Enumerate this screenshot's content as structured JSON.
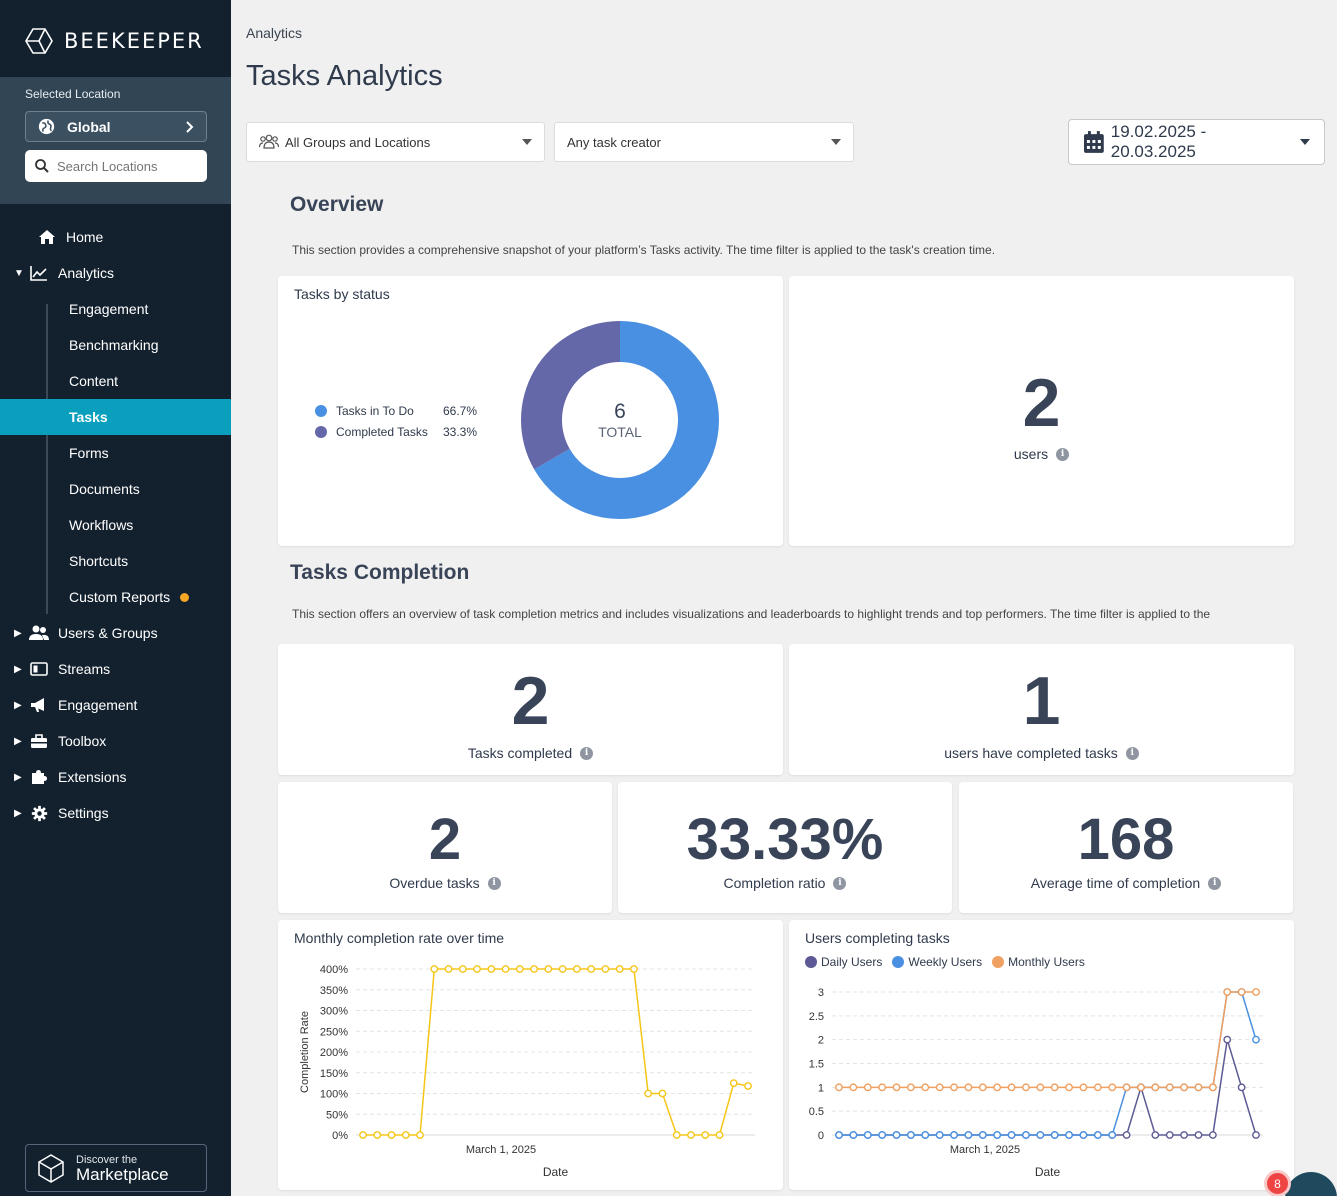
{
  "sidebar": {
    "brand": "BEEKEEPER",
    "location": {
      "label": "Selected Location",
      "value": "Global",
      "search_placeholder": "Search Locations"
    },
    "nav": {
      "home": "Home",
      "analytics": "Analytics",
      "analytics_sub": [
        "Engagement",
        "Benchmarking",
        "Content",
        "Tasks",
        "Forms",
        "Documents",
        "Workflows",
        "Shortcuts",
        "Custom Reports"
      ],
      "users_groups": "Users & Groups",
      "streams": "Streams",
      "engagement": "Engagement",
      "toolbox": "Toolbox",
      "extensions": "Extensions",
      "settings": "Settings"
    },
    "active_item": "Tasks",
    "marketplace": {
      "line1": "Discover the",
      "line2": "Marketplace"
    }
  },
  "header": {
    "breadcrumb": "Analytics",
    "title": "Tasks Analytics",
    "filter_groups": "All Groups and Locations",
    "filter_creator": "Any task creator",
    "date_range": "19.02.2025 - 20.03.2025"
  },
  "overview": {
    "title": "Overview",
    "description": "This section provides a comprehensive snapshot of your platform’s Tasks activity. The time filter is applied to the task's creation time.",
    "status_card": {
      "title": "Tasks by status",
      "total": "6",
      "total_label": "TOTAL",
      "legend": [
        {
          "label": "Tasks in To Do",
          "pct": "66.7%",
          "color": "#4a90e2"
        },
        {
          "label": "Completed Tasks",
          "pct": "33.3%",
          "color": "#6468a8"
        }
      ]
    },
    "users": {
      "value": "2",
      "label": "users"
    }
  },
  "completion": {
    "title": "Tasks Completion",
    "description": "This section offers an overview of task completion metrics and includes visualizations and leaderboards to highlight trends and top performers. The time filter is applied to the",
    "tasks_completed": {
      "value": "2",
      "label": "Tasks completed"
    },
    "users_completed": {
      "value": "1",
      "label": "users have completed tasks"
    },
    "overdue": {
      "value": "2",
      "label": "Overdue tasks"
    },
    "ratio": {
      "value": "33.33%",
      "label": "Completion ratio"
    },
    "avg_time": {
      "value": "168",
      "label": "Average time of completion"
    }
  },
  "chart_data": [
    {
      "type": "pie",
      "title": "Tasks by status",
      "categories": [
        "Tasks in To Do",
        "Completed Tasks"
      ],
      "values": [
        66.7,
        33.3
      ],
      "colors": [
        "#4a90e2",
        "#6468a8"
      ]
    },
    {
      "type": "line",
      "title": "Monthly completion rate over time",
      "xlabel": "Date",
      "ylabel": "Completion Rate",
      "x_tick_label": "March 1, 2025",
      "y_ticks": [
        "0%",
        "50%",
        "100%",
        "150%",
        "200%",
        "250%",
        "300%",
        "350%",
        "400%"
      ],
      "ylim": [
        0,
        400
      ],
      "series": [
        {
          "color": "#f5c518",
          "values": [
            0,
            0,
            0,
            0,
            0,
            400,
            400,
            400,
            400,
            400,
            400,
            400,
            400,
            400,
            400,
            400,
            400,
            400,
            400,
            400,
            100,
            100,
            0,
            0,
            0,
            0,
            125,
            118
          ]
        }
      ]
    },
    {
      "type": "line",
      "title": "Users completing tasks",
      "xlabel": "Date",
      "x_tick_label": "March 1, 2025",
      "y_ticks": [
        "0",
        "0.5",
        "1",
        "1.5",
        "2",
        "2.5",
        "3"
      ],
      "ylim": [
        0,
        3
      ],
      "series": [
        {
          "name": "Daily Users",
          "color": "#5c5a94",
          "values": [
            0,
            0,
            0,
            0,
            0,
            0,
            0,
            0,
            0,
            0,
            0,
            0,
            0,
            0,
            0,
            0,
            0,
            0,
            0,
            0,
            0,
            1,
            0,
            0,
            0,
            0,
            0,
            2,
            1,
            0
          ]
        },
        {
          "name": "Weekly Users",
          "color": "#4a90e2",
          "values": [
            0,
            0,
            0,
            0,
            0,
            0,
            0,
            0,
            0,
            0,
            0,
            0,
            0,
            0,
            0,
            0,
            0,
            0,
            0,
            0,
            1,
            1,
            1,
            1,
            1,
            1,
            1,
            3,
            3,
            2
          ]
        },
        {
          "name": "Monthly Users",
          "color": "#f0a060",
          "values": [
            1,
            1,
            1,
            1,
            1,
            1,
            1,
            1,
            1,
            1,
            1,
            1,
            1,
            1,
            1,
            1,
            1,
            1,
            1,
            1,
            1,
            1,
            1,
            1,
            1,
            1,
            1,
            3,
            3,
            3
          ]
        }
      ]
    }
  ],
  "notification_count": "8"
}
